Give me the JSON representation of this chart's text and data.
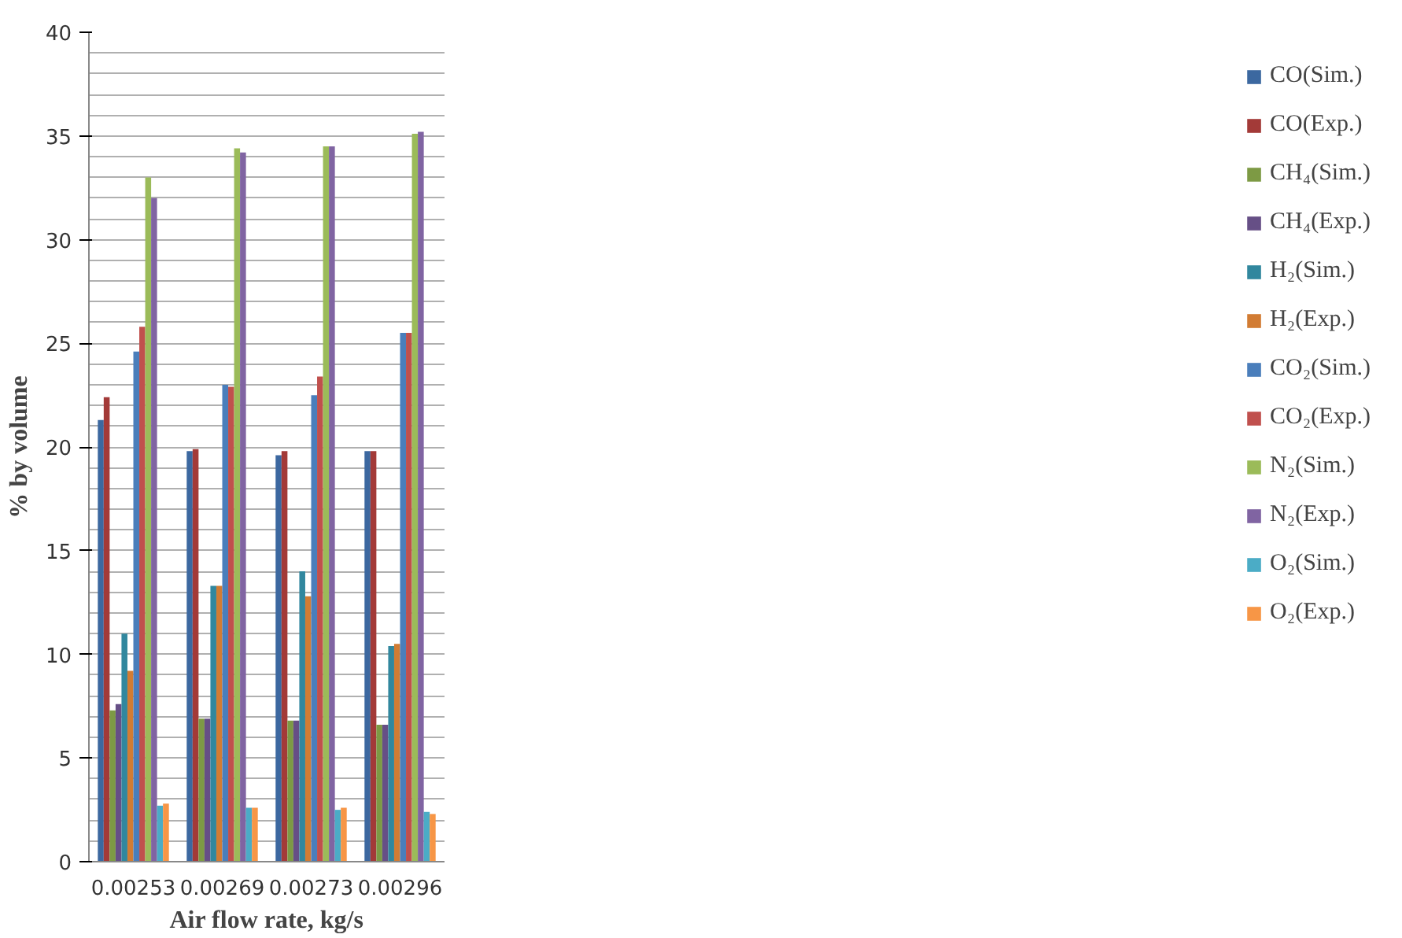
{
  "chart_data": {
    "type": "bar",
    "xlabel": "Air flow rate, kg/s",
    "ylabel": "% by volume",
    "categories": [
      "0.00253",
      "0.00269",
      "0.00273",
      "0.00296"
    ],
    "ylim": [
      0,
      40
    ],
    "yticks": [
      0,
      5,
      10,
      15,
      20,
      25,
      30,
      35,
      40
    ],
    "grid": "y",
    "legend": "right",
    "series": [
      {
        "name": "CO(Sim.)",
        "color": "#3c68a0",
        "values": [
          21.3,
          19.8,
          19.6,
          19.8
        ]
      },
      {
        "name": "CO(Exp.)",
        "color": "#a33a38",
        "values": [
          22.4,
          19.9,
          19.8,
          19.8
        ]
      },
      {
        "name": "CH₄(Sim.)",
        "color": "#7d9a44",
        "values": [
          7.3,
          6.9,
          6.8,
          6.6
        ]
      },
      {
        "name": "CH₄(Exp.)",
        "color": "#664f86",
        "values": [
          7.6,
          6.9,
          6.8,
          6.6
        ]
      },
      {
        "name": "H₂(Sim.)",
        "color": "#31879e",
        "values": [
          11.0,
          13.3,
          14.0,
          10.4
        ]
      },
      {
        "name": "H₂(Exp.)",
        "color": "#d27c33",
        "values": [
          9.2,
          13.3,
          12.8,
          10.5
        ]
      },
      {
        "name": "CO₂(Sim.)",
        "color": "#4a7ebb",
        "values": [
          24.6,
          23.0,
          22.5,
          25.5
        ]
      },
      {
        "name": "CO₂(Exp.)",
        "color": "#c0504d",
        "values": [
          25.8,
          22.9,
          23.4,
          25.5
        ]
      },
      {
        "name": "N₂(Sim.)",
        "color": "#9bbb59",
        "values": [
          33.0,
          34.4,
          34.5,
          35.1
        ]
      },
      {
        "name": "N₂(Exp.)",
        "color": "#8064a2",
        "values": [
          32.0,
          34.2,
          34.5,
          35.2
        ]
      },
      {
        "name": "O₂(Sim.)",
        "color": "#4bacc6",
        "values": [
          2.7,
          2.6,
          2.5,
          2.4
        ]
      },
      {
        "name": "O₂(Exp.)",
        "color": "#f79646",
        "values": [
          2.8,
          2.6,
          2.6,
          2.3
        ]
      }
    ]
  }
}
